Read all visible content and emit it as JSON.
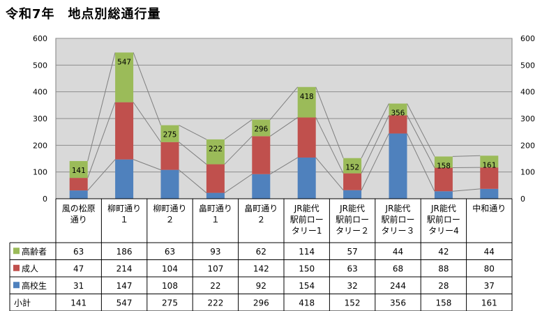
{
  "title": "令和7年　地点別総通行量",
  "chart_data": {
    "type": "bar",
    "stacked": true,
    "categories": [
      [
        "風の松原",
        "通り"
      ],
      [
        "柳町通り",
        "１"
      ],
      [
        "柳町通り",
        "２"
      ],
      [
        "畠町通り",
        "１"
      ],
      [
        "畠町通り",
        "２"
      ],
      [
        "JR能代",
        "駅前ロー",
        "タリー1"
      ],
      [
        "JR能代",
        "駅前ロー",
        "タリー２"
      ],
      [
        "JR能代",
        "駅前ロー",
        "タリー３"
      ],
      [
        "JR能代",
        "駅前ロー",
        "タリー4"
      ],
      [
        "中和通り"
      ]
    ],
    "series": [
      {
        "name": "高校生",
        "color": "#4f81bd",
        "values": [
          31,
          147,
          108,
          22,
          92,
          154,
          32,
          244,
          28,
          37
        ]
      },
      {
        "name": "成人",
        "color": "#c0504d",
        "values": [
          47,
          214,
          104,
          107,
          142,
          150,
          63,
          68,
          88,
          80
        ]
      },
      {
        "name": "高齢者",
        "color": "#9bbb59",
        "values": [
          63,
          186,
          63,
          93,
          62,
          114,
          57,
          44,
          42,
          44
        ]
      }
    ],
    "totals": [
      141,
      547,
      275,
      222,
      296,
      418,
      152,
      356,
      158,
      161
    ],
    "total_row_label": "小計",
    "ylim": [
      0,
      600
    ],
    "yticks": [
      "0",
      "100",
      "200",
      "300",
      "400",
      "500",
      "600"
    ],
    "grid": true,
    "legend": "data-table",
    "series_lines": true
  }
}
